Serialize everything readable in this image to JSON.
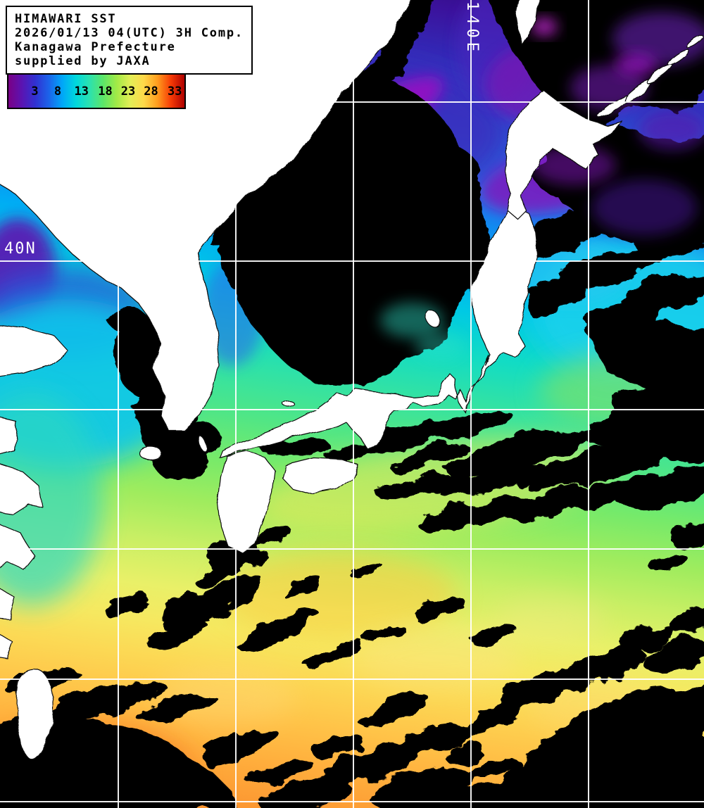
{
  "header": {
    "line1": "HIMAWARI SST",
    "line2": "2026/01/13 04(UTC) 3H Comp.",
    "line3": "Kanagawa Prefecture",
    "line4": "supplied by JAXA"
  },
  "colorbar": {
    "ticks": [
      {
        "label": "3",
        "pos_pct": 15
      },
      {
        "label": "8",
        "pos_pct": 28
      },
      {
        "label": "13",
        "pos_pct": 41.5
      },
      {
        "label": "18",
        "pos_pct": 55
      },
      {
        "label": "23",
        "pos_pct": 68
      },
      {
        "label": "28",
        "pos_pct": 81
      },
      {
        "label": "33",
        "pos_pct": 94.5
      }
    ],
    "gradient": [
      "#7a0086",
      "#5a14b2",
      "#3032d2",
      "#1b64ea",
      "#00a8f8",
      "#00d8dc",
      "#2ce2ae",
      "#5ce668",
      "#a2ea46",
      "#e2ee56",
      "#fed949",
      "#ff9d1e",
      "#f63b06",
      "#ae0000"
    ]
  },
  "grid": {
    "lon_label": "140E",
    "lat_label": "40N"
  },
  "map_colors": {
    "land": "#ffffff",
    "cloud_mask": "#000000",
    "grid_line": "#ffffff",
    "coldest_sea": "#300a78",
    "warmest_sea": "#f98a2c"
  }
}
